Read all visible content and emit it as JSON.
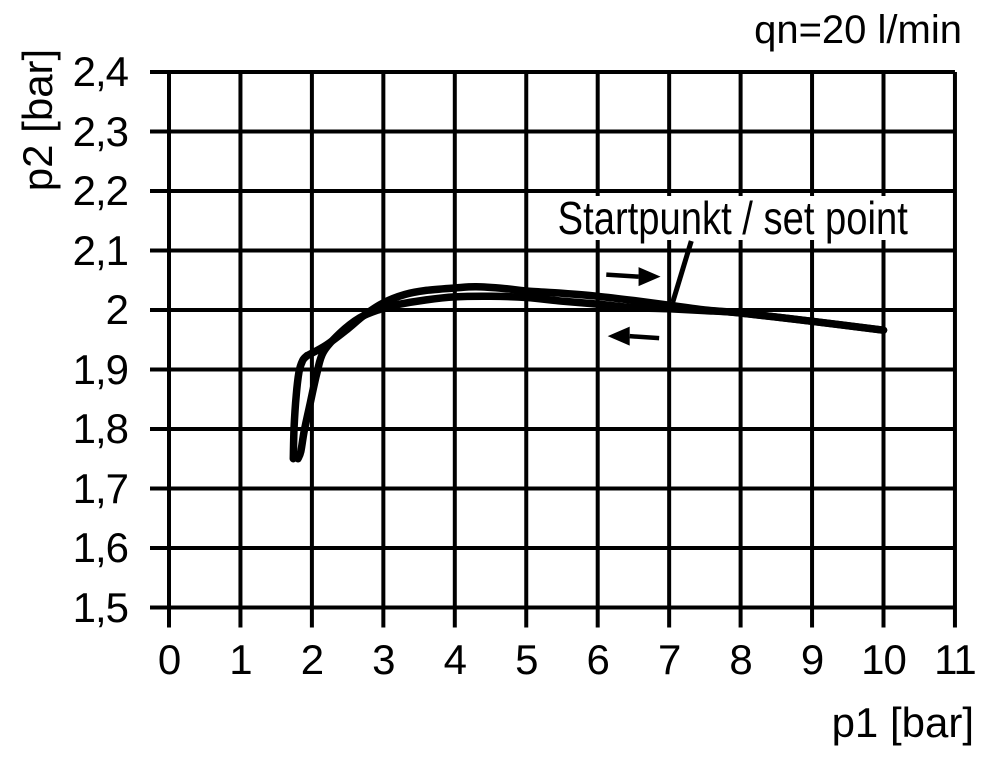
{
  "chart_data": {
    "type": "line",
    "title": "qn=20 l/min",
    "xlabel": "p1 [bar]",
    "ylabel": "p2 [bar]",
    "annotation": {
      "label": "Startpunkt / set point",
      "leader_from": [
        7.31,
        2.116
      ],
      "leader_to": [
        7.05,
        2.013
      ]
    },
    "xlim": [
      0,
      11
    ],
    "ylim": [
      1.5,
      2.4
    ],
    "grid": true,
    "x_ticks": [
      0,
      1,
      2,
      3,
      4,
      5,
      6,
      7,
      8,
      9,
      10,
      11
    ],
    "y_ticks": [
      {
        "label": "2,4",
        "value": 2.4
      },
      {
        "label": "2,3",
        "value": 2.3
      },
      {
        "label": "2,2",
        "value": 2.2
      },
      {
        "label": "2,1",
        "value": 2.1
      },
      {
        "label": "2",
        "value": 2.0
      },
      {
        "label": "1,9",
        "value": 1.9
      },
      {
        "label": "1,8",
        "value": 1.8
      },
      {
        "label": "1,7",
        "value": 1.7
      },
      {
        "label": "1,6",
        "value": 1.6
      },
      {
        "label": "1,5",
        "value": 1.5
      }
    ],
    "series": [
      {
        "name": "p1-increasing-branch",
        "direction": "right",
        "segments": [
          [
            [
              1.74,
              1.75
            ],
            [
              1.75,
              1.8
            ],
            [
              1.78,
              1.856
            ],
            [
              1.82,
              1.896
            ],
            [
              1.87,
              1.915
            ],
            [
              1.93,
              1.923
            ]
          ],
          [
            [
              1.93,
              1.923
            ],
            [
              2.2,
              1.941
            ],
            [
              2.5,
              1.968
            ],
            [
              2.72,
              1.99
            ],
            [
              3.0,
              2.012
            ],
            [
              3.3,
              2.026
            ],
            [
              3.6,
              2.033
            ],
            [
              4.0,
              2.037
            ],
            [
              4.3,
              2.039
            ],
            [
              4.7,
              2.036
            ],
            [
              5.0,
              2.032
            ],
            [
              5.5,
              2.028
            ],
            [
              6.0,
              2.023
            ],
            [
              6.5,
              2.016
            ],
            [
              7.0,
              2.008
            ],
            [
              7.5,
              2.0
            ],
            [
              8.0,
              1.995
            ],
            [
              9.0,
              1.981
            ],
            [
              10.0,
              1.966
            ]
          ]
        ]
      },
      {
        "name": "p1-decreasing-branch",
        "direction": "left",
        "segments": [
          [
            [
              10.0,
              1.966
            ],
            [
              9.0,
              1.981
            ],
            [
              8.0,
              1.995
            ],
            [
              7.5,
              1.999
            ],
            [
              7.0,
              2.002
            ],
            [
              6.5,
              2.004
            ],
            [
              6.0,
              2.01
            ],
            [
              5.5,
              2.015
            ],
            [
              5.0,
              2.021
            ],
            [
              4.5,
              2.023
            ],
            [
              4.0,
              2.022
            ],
            [
              3.6,
              2.017
            ],
            [
              3.2,
              2.009
            ],
            [
              2.95,
              2.001
            ],
            [
              2.67,
              1.987
            ],
            [
              2.39,
              1.961
            ],
            [
              2.16,
              1.929
            ],
            [
              2.07,
              1.894
            ],
            [
              1.97,
              1.84
            ],
            [
              1.89,
              1.795
            ],
            [
              1.845,
              1.762
            ],
            [
              1.805,
              1.75
            ]
          ]
        ]
      }
    ],
    "arrows": [
      {
        "name": "direction-arrow-right",
        "direction": "right",
        "y": 2.056,
        "x_tail": 6.12,
        "x_head": 6.88
      },
      {
        "name": "direction-arrow-left",
        "direction": "left",
        "y": 1.956,
        "x_tail": 6.86,
        "x_head": 6.14
      }
    ],
    "colors": {
      "line": "#000000",
      "grid": "#000000",
      "text": "#000000",
      "background": "#ffffff"
    }
  }
}
